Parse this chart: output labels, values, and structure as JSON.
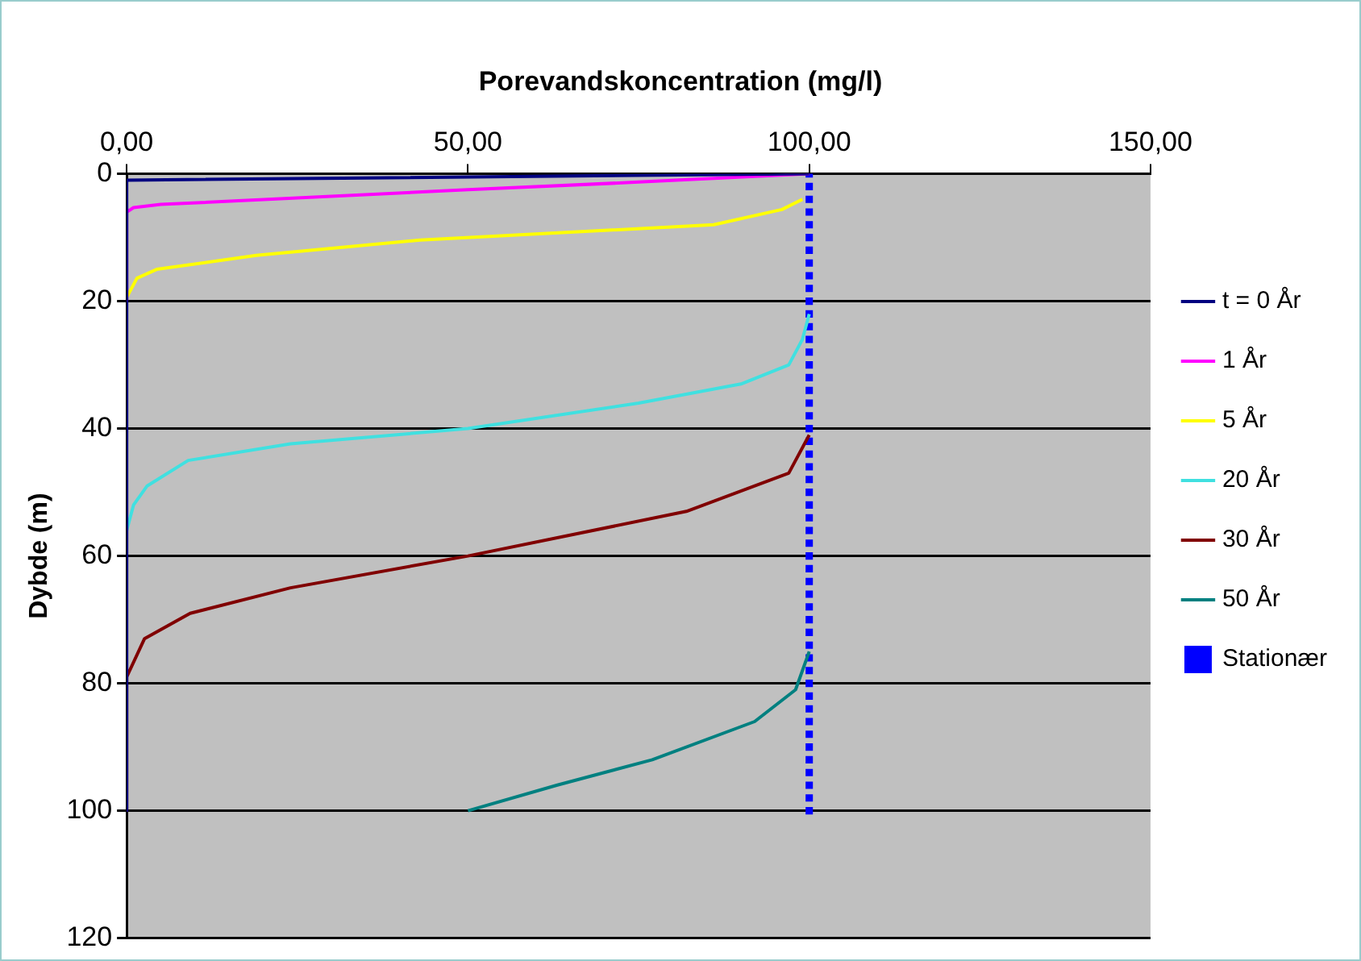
{
  "chart_data": {
    "type": "line",
    "title": "Porevandskoncentration (mg/l)",
    "ylabel": "Dybde (m)",
    "xlim": [
      0,
      150
    ],
    "xticks": [
      {
        "value": 0,
        "label": "0,00"
      },
      {
        "value": 50,
        "label": "50,00"
      },
      {
        "value": 100,
        "label": "100,00"
      },
      {
        "value": 150,
        "label": "150,00"
      }
    ],
    "ylim": [
      120,
      0
    ],
    "yticks": [
      0,
      20,
      40,
      60,
      80,
      100,
      120
    ],
    "grid": "y",
    "legend": "right",
    "marker": "none",
    "series": [
      {
        "name": "t = 0 År",
        "color": "#000080",
        "x": [
          100,
          0,
          0
        ],
        "values": [
          0,
          1,
          100
        ]
      },
      {
        "name": "1 År",
        "color": "#ff00ff",
        "x": [
          100,
          75,
          50,
          25,
          5,
          1,
          0,
          0
        ],
        "values": [
          0,
          1.3,
          2.5,
          3.8,
          4.8,
          5.3,
          6,
          20
        ]
      },
      {
        "name": "5 År",
        "color": "#ffff00",
        "x": [
          99,
          96,
          86,
          43,
          19,
          4.4,
          1.5,
          0
        ],
        "values": [
          4,
          5.6,
          8,
          10.4,
          12.8,
          15,
          16.4,
          19.4
        ]
      },
      {
        "name": "20 År",
        "color": "#40e0e0",
        "x": [
          100,
          99,
          97,
          90,
          75,
          50,
          24,
          9,
          3,
          1,
          0
        ],
        "values": [
          22,
          26,
          30,
          33,
          36,
          40,
          42.4,
          45,
          49,
          52,
          56
        ]
      },
      {
        "name": "30 År",
        "color": "#800000",
        "x": [
          100,
          97,
          82,
          50,
          24,
          9.3,
          2.6,
          0,
          0
        ],
        "values": [
          41,
          47,
          53,
          60,
          65,
          69,
          73,
          79,
          100
        ]
      },
      {
        "name": "50 År",
        "color": "#008080",
        "x": [
          100,
          98,
          92,
          77,
          63,
          50
        ],
        "values": [
          75,
          81,
          86,
          92,
          96,
          100
        ]
      },
      {
        "name": "Stationær",
        "type": "scatter",
        "marker": "square",
        "color": "#0000ff",
        "x": [
          100,
          100,
          100,
          100,
          100,
          100,
          100,
          100,
          100,
          100,
          100,
          100,
          100,
          100,
          100,
          100,
          100,
          100,
          100,
          100,
          100,
          100,
          100,
          100,
          100,
          100,
          100,
          100,
          100,
          100,
          100,
          100,
          100,
          100,
          100,
          100,
          100,
          100,
          100,
          100,
          100,
          100,
          100,
          100,
          100,
          100,
          100,
          100,
          100,
          100,
          100
        ],
        "values": [
          0,
          2,
          4,
          6,
          8,
          10,
          12,
          14,
          16,
          18,
          20,
          22,
          24,
          26,
          28,
          30,
          32,
          34,
          36,
          38,
          40,
          42,
          44,
          46,
          48,
          50,
          52,
          54,
          56,
          58,
          60,
          62,
          64,
          66,
          68,
          70,
          72,
          74,
          76,
          78,
          80,
          82,
          84,
          86,
          88,
          90,
          92,
          94,
          96,
          98,
          100
        ]
      }
    ]
  }
}
